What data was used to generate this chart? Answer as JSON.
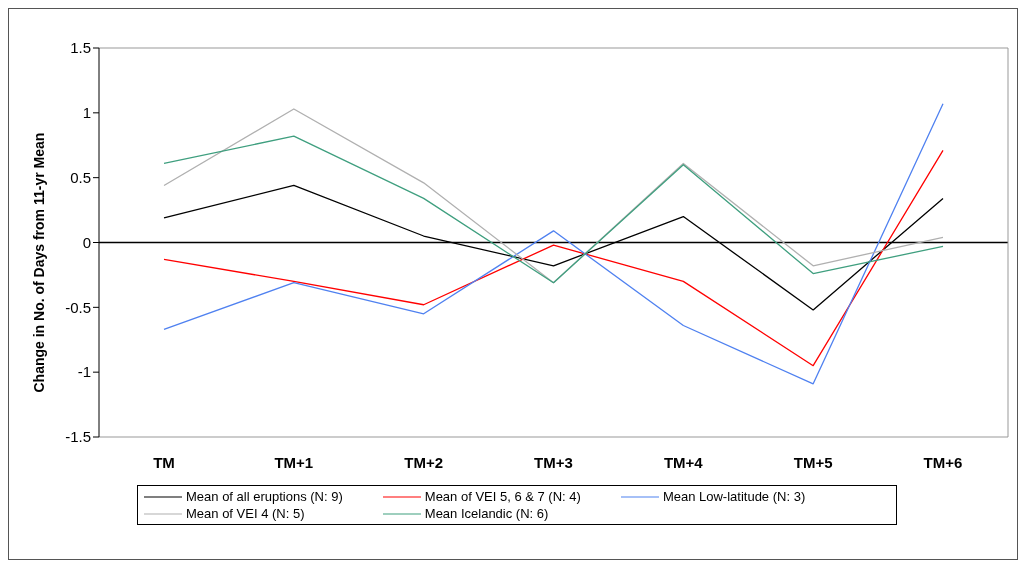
{
  "chart_data": {
    "type": "line",
    "ylabel": "Change in No. of Days from 11-yr Mean",
    "categories": [
      "TM",
      "TM+1",
      "TM+2",
      "TM+3",
      "TM+4",
      "TM+5",
      "TM+6"
    ],
    "series": [
      {
        "name": "Mean of all eruptions (N: 9)",
        "color": "#000000",
        "values": [
          0.19,
          0.44,
          0.05,
          -0.18,
          0.2,
          -0.52,
          0.34
        ]
      },
      {
        "name": "Mean of VEI 5, 6 & 7 (N: 4)",
        "color": "#ff0000",
        "values": [
          -0.13,
          -0.3,
          -0.48,
          -0.02,
          -0.3,
          -0.95,
          0.71
        ]
      },
      {
        "name": "Mean Low-latitude (N: 3)",
        "color": "#4f81f0",
        "values": [
          -0.67,
          -0.31,
          -0.55,
          0.09,
          -0.64,
          -1.09,
          1.07
        ]
      },
      {
        "name": "Mean of VEI 4 (N: 5)",
        "color": "#b0b0b0",
        "values": [
          0.44,
          1.03,
          0.46,
          -0.31,
          0.61,
          -0.18,
          0.04
        ]
      },
      {
        "name": "Mean Icelandic (N: 6)",
        "color": "#3f9f7f",
        "values": [
          0.61,
          0.82,
          0.34,
          -0.31,
          0.6,
          -0.24,
          -0.03
        ]
      }
    ],
    "ylim": [
      -1.5,
      1.5
    ],
    "yticks": [
      -1.5,
      -1,
      -0.5,
      0,
      0.5,
      1,
      1.5
    ],
    "ref_lines": [
      {
        "axis": "y",
        "value": 0,
        "color": "#000000"
      }
    ],
    "legend": "bottom",
    "marker": "none",
    "line_style": "solid"
  }
}
